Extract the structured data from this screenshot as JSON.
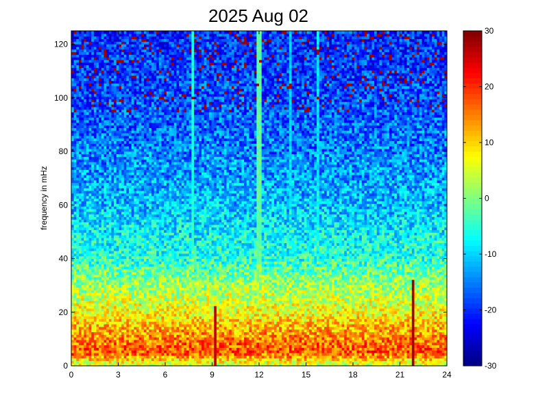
{
  "chart_data": {
    "type": "heatmap",
    "title": "2025 Aug 02",
    "xlabel": "",
    "ylabel": "frequency in mHz",
    "xlim": [
      0,
      24
    ],
    "ylim": [
      0,
      125
    ],
    "x_ticks": [
      0,
      3,
      6,
      9,
      12,
      15,
      18,
      21,
      24
    ],
    "y_ticks": [
      0,
      20,
      40,
      60,
      80,
      100,
      120
    ],
    "colorbar": {
      "range": [
        -30,
        30
      ],
      "ticks": [
        30,
        20,
        10,
        0,
        -10,
        -20,
        -30
      ],
      "colormap": "jet"
    },
    "grid": false,
    "mean_level_by_frequency": [
      {
        "frequency": 1,
        "value": 5
      },
      {
        "frequency": 5,
        "value": 18
      },
      {
        "frequency": 10,
        "value": 15
      },
      {
        "frequency": 20,
        "value": 7
      },
      {
        "frequency": 30,
        "value": 2
      },
      {
        "frequency": 40,
        "value": -5
      },
      {
        "frequency": 60,
        "value": -11
      },
      {
        "frequency": 80,
        "value": -15
      },
      {
        "frequency": 100,
        "value": -18
      },
      {
        "frequency": 125,
        "value": -20
      }
    ],
    "bright_vertical_lines": [
      {
        "time": 7.8,
        "value": -6
      },
      {
        "time": 12.0,
        "value": -2
      },
      {
        "time": 14.0,
        "value": -10
      },
      {
        "time": 15.8,
        "value": -9
      }
    ],
    "red_vertical_features": [
      {
        "time": 9.2,
        "max_frequency": 22,
        "value": 26
      },
      {
        "time": 21.8,
        "max_frequency": 32,
        "value": 28
      }
    ]
  }
}
